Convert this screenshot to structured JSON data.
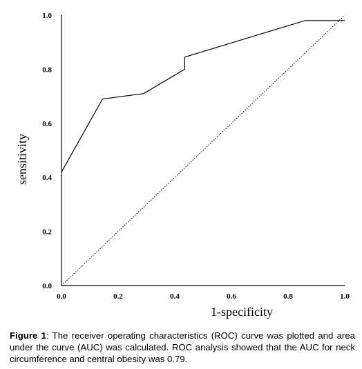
{
  "chart_data": {
    "type": "line",
    "xlabel": "1-specificity",
    "ylabel": "sensitivity",
    "xlim": [
      0,
      1
    ],
    "ylim": [
      0,
      1
    ],
    "x_ticks": [
      "0.0",
      "0.2",
      "0.4",
      "0.6",
      "0.8",
      "1.0"
    ],
    "y_ticks": [
      "0.0",
      "0.2",
      "0.4",
      "0.6",
      "0.8",
      "1.0"
    ],
    "grid": false,
    "legend": "none",
    "series": [
      {
        "style": "solid",
        "x": [
          0.0,
          0.145,
          0.29,
          0.435,
          0.435,
          0.86,
          1.0
        ],
        "y": [
          0.42,
          0.69,
          0.71,
          0.8,
          0.845,
          0.98,
          0.98
        ]
      },
      {
        "style": "dotted",
        "x": [
          0.0,
          1.0
        ],
        "y": [
          0.0,
          1.0
        ]
      }
    ]
  },
  "caption": {
    "label": "Figure 1",
    "text": ": The receiver operating characteristics (ROC) curve was plotted and area under the curve (AUC) was calculated. ROC analysis showed that the AUC for neck circumference and central obesity was 0.79."
  }
}
